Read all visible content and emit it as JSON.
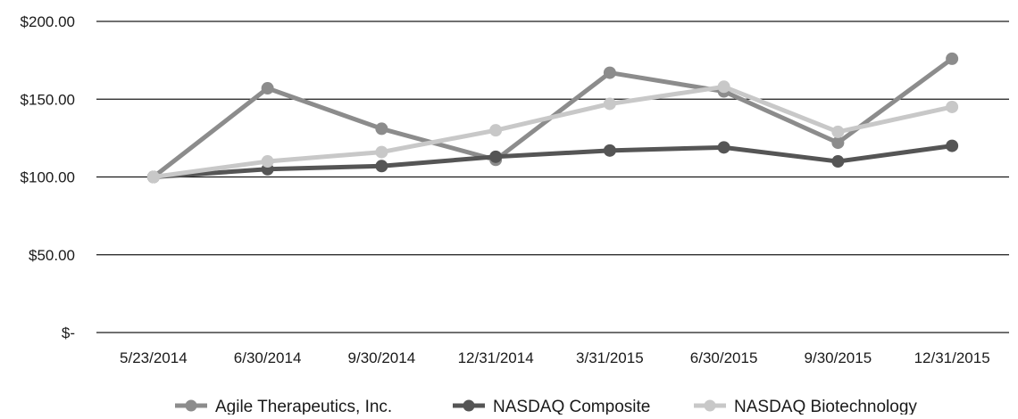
{
  "chart_data": {
    "type": "line",
    "categories": [
      "5/23/2014",
      "6/30/2014",
      "9/30/2014",
      "12/31/2014",
      "3/31/2015",
      "6/30/2015",
      "9/30/2015",
      "12/31/2015"
    ],
    "y_tick_labels": [
      "$-",
      "$50.00",
      "$100.00",
      "$150.00",
      "$200.00"
    ],
    "y_ticks": [
      0,
      50,
      100,
      150,
      200
    ],
    "ylim": [
      0,
      200
    ],
    "grid": "horizontal",
    "legend_position": "bottom",
    "series": [
      {
        "name": "Agile Therapeutics, Inc.",
        "color": "#8c8c8c",
        "values": [
          100,
          157,
          131,
          111,
          167,
          155,
          122,
          176
        ]
      },
      {
        "name": "NASDAQ Composite",
        "color": "#555555",
        "values": [
          100,
          105,
          107,
          113,
          117,
          119,
          110,
          120
        ]
      },
      {
        "name": "NASDAQ Biotechnology",
        "color": "#c8c8c8",
        "values": [
          100,
          110,
          116,
          130,
          147,
          158,
          129,
          145
        ]
      }
    ]
  }
}
